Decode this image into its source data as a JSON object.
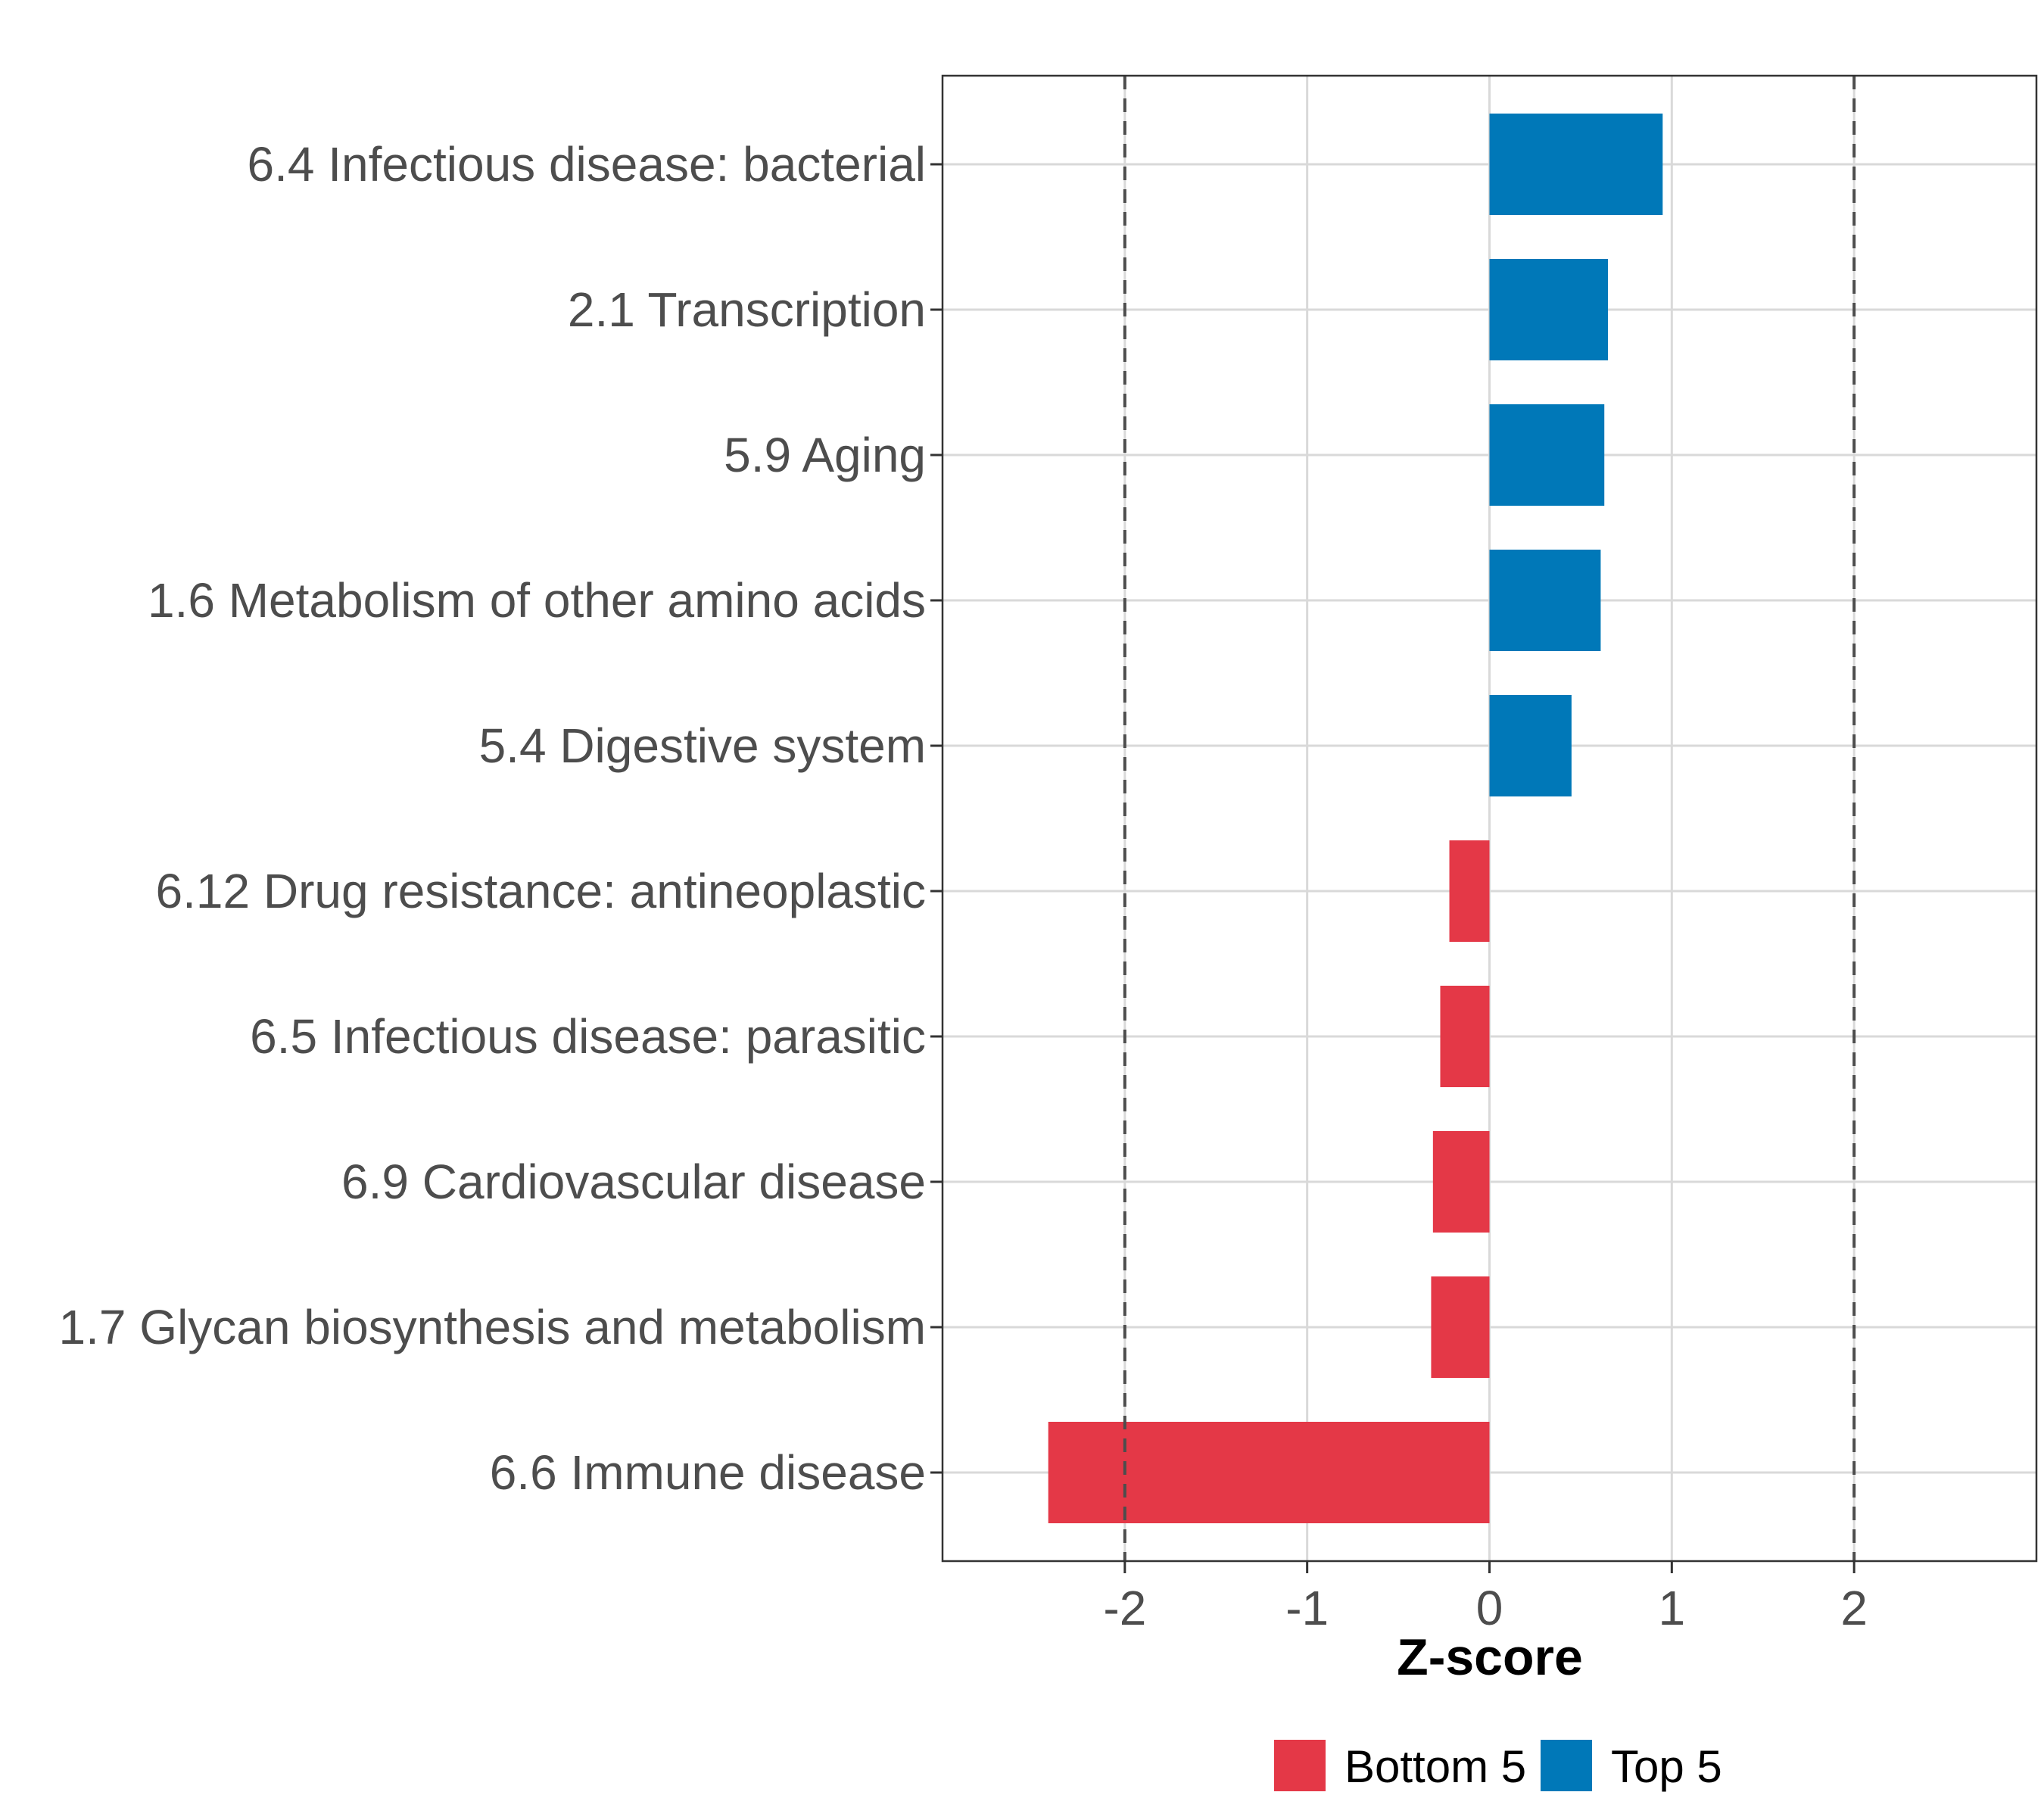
{
  "chart_data": {
    "type": "bar",
    "orientation": "horizontal",
    "categories": [
      "6.4 Infectious disease: bacterial",
      "2.1 Transcription",
      "5.9 Aging",
      "1.6 Metabolism of other amino acids",
      "5.4 Digestive system",
      "6.12 Drug resistance: antineoplastic",
      "6.5 Infectious disease: parasitic",
      "6.9 Cardiovascular disease",
      "1.7 Glycan biosynthesis and metabolism",
      "6.6 Immune disease"
    ],
    "values": [
      0.95,
      0.65,
      0.63,
      0.61,
      0.45,
      -0.22,
      -0.27,
      -0.31,
      -0.32,
      -2.42
    ],
    "groups": [
      "Top 5",
      "Top 5",
      "Top 5",
      "Top 5",
      "Top 5",
      "Bottom 5",
      "Bottom 5",
      "Bottom 5",
      "Bottom 5",
      "Bottom 5"
    ],
    "xlabel": "Z-score",
    "ylabel": "",
    "xlim": [
      -3.0,
      3.0
    ],
    "xticks": [
      -2,
      -1,
      0,
      1,
      2
    ],
    "xtick_labels": [
      "-2",
      "-1",
      "0",
      "1",
      "2"
    ],
    "reference_lines": [
      -2,
      2
    ],
    "grid": true,
    "legend": {
      "position": "bottom",
      "entries": [
        {
          "label": "Bottom 5",
          "color": "#e43847"
        },
        {
          "label": "Top 5",
          "color": "#0078b8"
        }
      ]
    }
  }
}
